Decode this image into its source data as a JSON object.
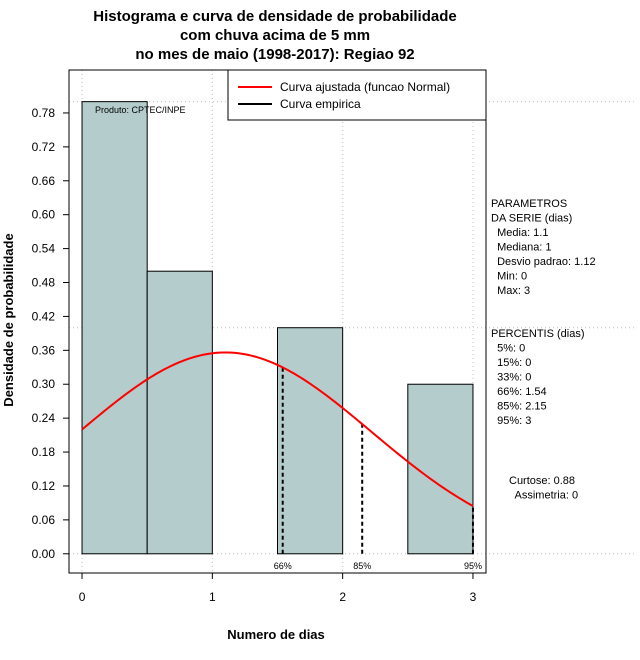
{
  "chart_data": {
    "type": "bar",
    "title": [
      "Histograma e curva de densidade de probabilidade",
      "com chuva acima de 5 mm",
      "no mes de maio (1998-2017): Regiao 92"
    ],
    "xlabel": "Numero de dias",
    "ylabel": "Densidade de probabilidade",
    "xlim": [
      -0.1,
      3.1
    ],
    "ylim": [
      -0.034,
      0.856
    ],
    "x_ticks": [
      0,
      1,
      2,
      3
    ],
    "y_ticks": [
      0.0,
      0.06,
      0.12,
      0.18,
      0.24,
      0.3,
      0.36,
      0.42,
      0.48,
      0.54,
      0.6,
      0.66,
      0.72,
      0.78
    ],
    "y_tick_labels": [
      "0.00",
      "0.06",
      "0.12",
      "0.18",
      "0.24",
      "0.30",
      "0.36",
      "0.42",
      "0.48",
      "0.54",
      "0.60",
      "0.66",
      "0.72",
      "0.78"
    ],
    "bars": [
      {
        "x0": 0.0,
        "x1": 0.5,
        "value": 0.8
      },
      {
        "x0": 0.5,
        "x1": 1.0,
        "value": 0.5
      },
      {
        "x0": 1.5,
        "x1": 2.0,
        "value": 0.4
      },
      {
        "x0": 2.5,
        "x1": 3.0,
        "value": 0.3
      }
    ],
    "normal_curve": {
      "mean": 1.1,
      "sd": 1.12,
      "x_from": 0.0,
      "x_to": 3.0
    },
    "percentile_markers": [
      {
        "label": "66%",
        "x": 1.54
      },
      {
        "label": "85%",
        "x": 2.15
      },
      {
        "label": "95%",
        "x": 3.0
      }
    ],
    "reference_gridlines_y": [
      0.4,
      0.8
    ],
    "legend": [
      {
        "label": "Curva ajustada (funcao Normal)",
        "color": "#ff0000"
      },
      {
        "label": "Curva empirica",
        "color": "#000000"
      }
    ],
    "legend_position": "top-right",
    "product_label": "Produto: CPTEC/INPE",
    "colors": {
      "bar_fill": "#b4cccc",
      "curve": "#ff0000",
      "grid": "#c0c0c0"
    }
  },
  "side_panel": {
    "params_lines": [
      "PARAMETROS",
      "DA SERIE (dias)",
      "  Media: 1.1",
      "  Mediana: 1",
      "  Desvio padrao: 1.12",
      "  Min: 0",
      "  Max: 3"
    ],
    "percentis_lines": [
      "PERCENTIS (dias)",
      "  5%: 0",
      "  15%: 0",
      "  33%: 0",
      "  66%: 1.54",
      "  85%: 2.15",
      "  95%: 3"
    ],
    "stats_lines": [
      "Curtose: 0.88",
      "  Assimetria: 0"
    ]
  }
}
